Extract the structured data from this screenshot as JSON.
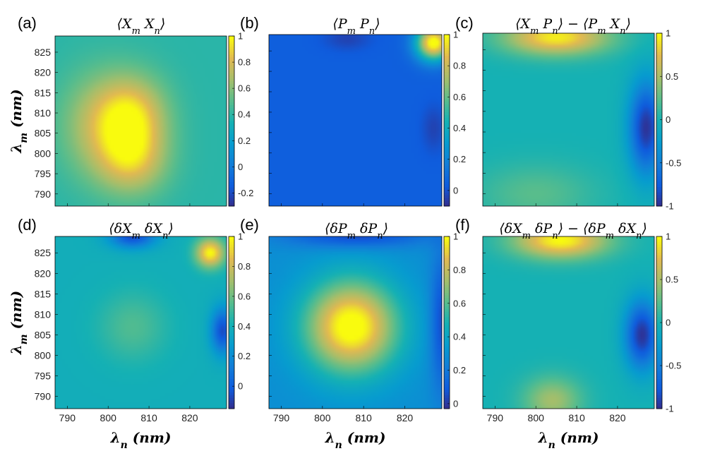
{
  "chart_data": [
    {
      "type": "heatmap",
      "panel_label": "(a)",
      "title": "⟨X_m X_n⟩",
      "xlabel": "",
      "ylabel": "λ_m (nm)",
      "x_range": [
        787,
        829
      ],
      "y_range": [
        787,
        829
      ],
      "x_ticks": [
        "790",
        "800",
        "810",
        "820"
      ],
      "y_ticks": [
        "790",
        "795",
        "800",
        "805",
        "810",
        "815",
        "820",
        "825"
      ],
      "colorbar_range": [
        -0.3,
        1
      ],
      "colorbar_ticks": [
        "-0.2",
        "0",
        "0.2",
        "0.4",
        "0.6",
        "0.8",
        "1"
      ],
      "colormap": "parula",
      "features": [
        {
          "x": 806,
          "y": 809,
          "sx": 6,
          "sy": 7,
          "amp": 0.45
        },
        {
          "x": 806,
          "y": 798,
          "sx": 6,
          "sy": 6,
          "amp": 0.35
        },
        {
          "x": 798,
          "y": 807,
          "sx": 7,
          "sy": 9,
          "amp": 0.3
        }
      ],
      "base": 0.4,
      "notes": "bright yellow center near (808, 809); darker bands along edges"
    },
    {
      "type": "heatmap",
      "panel_label": "(b)",
      "title": "⟨P_m P_n⟩",
      "xlabel": "",
      "ylabel": "",
      "x_range": [
        787,
        829
      ],
      "y_range": [
        787,
        829
      ],
      "x_ticks": [
        "790",
        "800",
        "810",
        "820"
      ],
      "y_ticks": [
        "790",
        "795",
        "800",
        "805",
        "810",
        "815",
        "820",
        "825"
      ],
      "colorbar_range": [
        -0.1,
        1
      ],
      "colorbar_ticks": [
        "0",
        "0.2",
        "0.4",
        "0.6",
        "0.8",
        "1"
      ],
      "colormap": "parula",
      "features": [
        {
          "x": 827,
          "y": 827,
          "sx": 3,
          "sy": 3,
          "amp": 1.0
        },
        {
          "x": 806,
          "y": 828,
          "sx": 4,
          "sy": 2,
          "amp": -0.08
        },
        {
          "x": 827,
          "y": 806,
          "sx": 2,
          "sy": 4,
          "amp": -0.08
        }
      ],
      "base": 0.05
    },
    {
      "type": "heatmap",
      "panel_label": "(c)",
      "title": "⟨X_m P_n⟩ − ⟨P_m X_n⟩",
      "xlabel": "",
      "ylabel": "",
      "x_range": [
        787,
        829
      ],
      "y_range": [
        787,
        829
      ],
      "x_ticks": [
        "790",
        "800",
        "810",
        "820"
      ],
      "y_ticks": [
        "790",
        "795",
        "800",
        "805",
        "810",
        "815",
        "820",
        "825"
      ],
      "colorbar_range": [
        -1,
        1
      ],
      "colorbar_ticks": [
        "-1",
        "-0.5",
        "0",
        "0.5",
        "1"
      ],
      "colormap": "parula",
      "features": [
        {
          "x": 805,
          "y": 828,
          "sx": 9,
          "sy": 3,
          "amp": 0.95
        },
        {
          "x": 827,
          "y": 806,
          "sx": 3,
          "sy": 8,
          "amp": -0.95
        },
        {
          "x": 800,
          "y": 790,
          "sx": 10,
          "sy": 5,
          "amp": 0.25
        }
      ],
      "base": 0.0
    },
    {
      "type": "heatmap",
      "panel_label": "(d)",
      "title": "⟨δX_m δX_n⟩",
      "xlabel": "λ_n (nm)",
      "ylabel": "λ_m (nm)",
      "x_range": [
        787,
        829
      ],
      "y_range": [
        787,
        829
      ],
      "x_ticks": [
        "790",
        "800",
        "810",
        "820"
      ],
      "y_ticks": [
        "790",
        "795",
        "800",
        "805",
        "810",
        "815",
        "820",
        "825"
      ],
      "colorbar_range": [
        -0.15,
        1
      ],
      "colorbar_ticks": [
        "0",
        "0.2",
        "0.4",
        "0.6",
        "0.8",
        "1"
      ],
      "colormap": "parula",
      "features": [
        {
          "x": 825,
          "y": 825,
          "sx": 2.5,
          "sy": 2.5,
          "amp": 0.6
        },
        {
          "x": 806,
          "y": 807,
          "sx": 6,
          "sy": 6,
          "amp": 0.15
        },
        {
          "x": 806,
          "y": 829,
          "sx": 4,
          "sy": 2,
          "amp": -0.45
        },
        {
          "x": 828,
          "y": 806,
          "sx": 2,
          "sy": 4,
          "amp": -0.45
        }
      ],
      "base": 0.4
    },
    {
      "type": "heatmap",
      "panel_label": "(e)",
      "title": "⟨δP_m δP_n⟩",
      "xlabel": "λ_n (nm)",
      "ylabel": "",
      "x_range": [
        787,
        829
      ],
      "y_range": [
        787,
        829
      ],
      "x_ticks": [
        "790",
        "800",
        "810",
        "820"
      ],
      "y_ticks": [
        "790",
        "795",
        "800",
        "805",
        "810",
        "815",
        "820",
        "825"
      ],
      "colorbar_range": [
        -0.03,
        1
      ],
      "colorbar_ticks": [
        "0",
        "0.2",
        "0.4",
        "0.6",
        "0.8",
        "1"
      ],
      "colormap": "parula",
      "features": [
        {
          "x": 807,
          "y": 807,
          "sx": 8,
          "sy": 8,
          "amp": 0.75
        },
        {
          "x": 808,
          "y": 829,
          "sx": 12,
          "sy": 2,
          "amp": -0.25
        },
        {
          "x": 829,
          "y": 808,
          "sx": 2,
          "sy": 12,
          "amp": -0.25
        }
      ],
      "base": 0.3
    },
    {
      "type": "heatmap",
      "panel_label": "(f)",
      "title": "⟨δX_m δP_n⟩ − ⟨δP_m δX_n⟩",
      "xlabel": "λ_n (nm)",
      "ylabel": "",
      "x_range": [
        787,
        829
      ],
      "y_range": [
        787,
        829
      ],
      "x_ticks": [
        "790",
        "800",
        "810",
        "820"
      ],
      "y_ticks": [
        "790",
        "795",
        "800",
        "805",
        "810",
        "815",
        "820",
        "825"
      ],
      "colorbar_range": [
        -1,
        1
      ],
      "colorbar_ticks": [
        "-1",
        "-0.5",
        "0",
        "0.5",
        "1"
      ],
      "colormap": "parula",
      "features": [
        {
          "x": 806,
          "y": 828,
          "sx": 8,
          "sy": 3,
          "amp": 1.0
        },
        {
          "x": 826,
          "y": 805,
          "sx": 3,
          "sy": 6,
          "amp": -0.95
        },
        {
          "x": 804,
          "y": 789,
          "sx": 5,
          "sy": 4,
          "amp": 0.5
        }
      ],
      "base": 0.0
    }
  ]
}
